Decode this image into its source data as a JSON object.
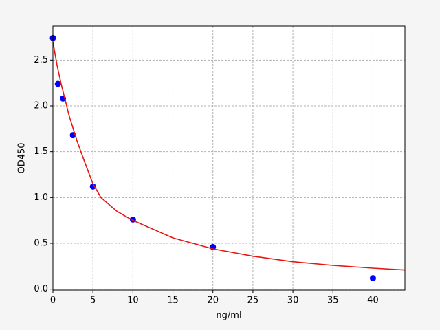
{
  "chart_data": {
    "type": "scatter",
    "xlabel": "ng/ml",
    "ylabel": "OD450",
    "xlim": [
      0,
      44
    ],
    "ylim": [
      -0.01,
      2.87
    ],
    "xticks": [
      0,
      5,
      10,
      15,
      20,
      25,
      30,
      35,
      40
    ],
    "yticks": [
      {
        "value": 0,
        "label": "0.0"
      },
      0.5,
      {
        "value": 1,
        "label": "1.0"
      },
      1.5,
      {
        "value": 2,
        "label": "2.0"
      },
      2.5
    ],
    "grid": true,
    "series": [
      {
        "type": "scatter",
        "color": "#0000ff",
        "x": [
          0,
          0.625,
          1.25,
          2.5,
          5,
          10,
          20,
          40
        ],
        "values": [
          2.74,
          2.24,
          2.08,
          1.68,
          1.12,
          0.76,
          0.46,
          0.12
        ]
      },
      {
        "type": "line",
        "color": "#e8150f",
        "x": [
          0,
          0.5,
          1,
          2,
          3,
          4,
          5,
          6,
          8,
          10,
          15,
          20,
          25,
          30,
          35,
          40,
          44
        ],
        "values": [
          2.7,
          2.45,
          2.25,
          1.9,
          1.62,
          1.38,
          1.15,
          1.0,
          0.85,
          0.75,
          0.56,
          0.44,
          0.36,
          0.3,
          0.26,
          0.23,
          0.21
        ]
      }
    ]
  }
}
